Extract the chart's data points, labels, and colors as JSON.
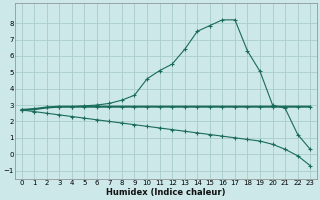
{
  "title": "",
  "xlabel": "Humidex (Indice chaleur)",
  "background_color": "#cce8e8",
  "grid_color": "#aacccc",
  "line_color": "#1a6b5a",
  "xlim": [
    -0.5,
    23.5
  ],
  "ylim": [
    -1.5,
    9.2
  ],
  "yticks": [
    -1,
    0,
    1,
    2,
    3,
    4,
    5,
    6,
    7,
    8
  ],
  "xticks": [
    0,
    1,
    2,
    3,
    4,
    5,
    6,
    7,
    8,
    9,
    10,
    11,
    12,
    13,
    14,
    15,
    16,
    17,
    18,
    19,
    20,
    21,
    22,
    23
  ],
  "curve1_x": [
    0,
    1,
    2,
    3,
    4,
    5,
    6,
    7,
    8,
    9,
    10,
    11,
    12,
    13,
    14,
    15,
    16,
    17,
    18,
    19,
    20,
    21,
    22,
    23
  ],
  "curve1_y": [
    2.7,
    2.75,
    2.85,
    2.9,
    2.9,
    2.95,
    3.0,
    3.1,
    3.3,
    3.6,
    4.6,
    5.1,
    5.5,
    6.4,
    7.5,
    7.85,
    8.2,
    8.2,
    6.3,
    5.05,
    3.0,
    2.8,
    1.2,
    0.3
  ],
  "curve2_x": [
    0,
    1,
    2,
    3,
    4,
    5,
    6,
    7,
    8,
    9,
    10,
    11,
    12,
    13,
    14,
    15,
    16,
    17,
    18,
    19,
    20,
    21,
    22,
    23
  ],
  "curve2_y": [
    2.7,
    2.75,
    2.85,
    2.9,
    2.9,
    2.9,
    2.9,
    2.9,
    2.9,
    2.9,
    2.9,
    2.9,
    2.9,
    2.9,
    2.9,
    2.9,
    2.9,
    2.9,
    2.9,
    2.9,
    2.9,
    2.9,
    2.9,
    2.9
  ],
  "curve3_x": [
    0,
    1,
    2,
    3,
    4,
    5,
    6,
    7,
    8,
    9,
    10,
    11,
    12,
    13,
    14,
    15,
    16,
    17,
    18,
    19,
    20,
    21,
    22,
    23
  ],
  "curve3_y": [
    2.7,
    2.6,
    2.5,
    2.4,
    2.3,
    2.2,
    2.1,
    2.0,
    1.9,
    1.8,
    1.7,
    1.6,
    1.5,
    1.4,
    1.3,
    1.2,
    1.1,
    1.0,
    0.9,
    0.8,
    0.6,
    0.3,
    -0.1,
    -0.7
  ],
  "tick_fontsize": 5,
  "xlabel_fontsize": 6,
  "lw1": 0.8,
  "lw2": 1.5,
  "lw3": 0.8
}
